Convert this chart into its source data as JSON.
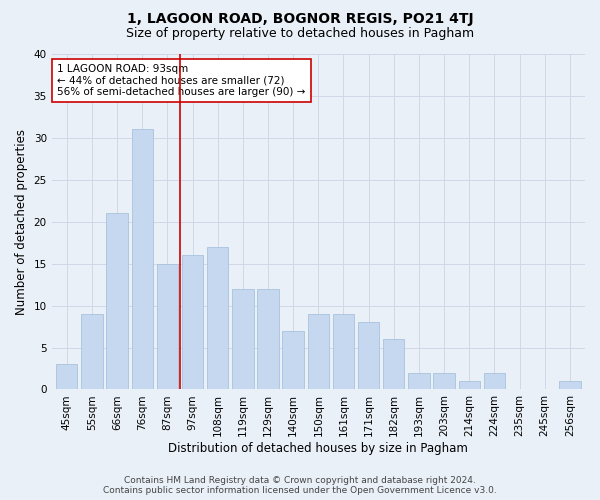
{
  "title": "1, LAGOON ROAD, BOGNOR REGIS, PO21 4TJ",
  "subtitle": "Size of property relative to detached houses in Pagham",
  "xlabel": "Distribution of detached houses by size in Pagham",
  "ylabel": "Number of detached properties",
  "categories": [
    "45sqm",
    "55sqm",
    "66sqm",
    "76sqm",
    "87sqm",
    "97sqm",
    "108sqm",
    "119sqm",
    "129sqm",
    "140sqm",
    "150sqm",
    "161sqm",
    "171sqm",
    "182sqm",
    "193sqm",
    "203sqm",
    "214sqm",
    "224sqm",
    "235sqm",
    "245sqm",
    "256sqm"
  ],
  "values": [
    3,
    9,
    21,
    31,
    15,
    16,
    17,
    12,
    12,
    7,
    9,
    9,
    8,
    6,
    2,
    2,
    1,
    2,
    0,
    0,
    1
  ],
  "bar_color": "#c5d8f0",
  "bar_edgecolor": "#a0bcd8",
  "grid_color": "#d0d8e8",
  "background_color": "#eaf0f8",
  "vline_x": 4.5,
  "vline_color": "#cc0000",
  "annotation_text": "1 LAGOON ROAD: 93sqm\n← 44% of detached houses are smaller (72)\n56% of semi-detached houses are larger (90) →",
  "annotation_box_color": "#ffffff",
  "annotation_box_edgecolor": "#cc0000",
  "ylim": [
    0,
    40
  ],
  "yticks": [
    0,
    5,
    10,
    15,
    20,
    25,
    30,
    35,
    40
  ],
  "footer_line1": "Contains HM Land Registry data © Crown copyright and database right 2024.",
  "footer_line2": "Contains public sector information licensed under the Open Government Licence v3.0.",
  "title_fontsize": 10,
  "subtitle_fontsize": 9,
  "xlabel_fontsize": 8.5,
  "ylabel_fontsize": 8.5,
  "tick_fontsize": 7.5,
  "annotation_fontsize": 7.5,
  "footer_fontsize": 6.5
}
